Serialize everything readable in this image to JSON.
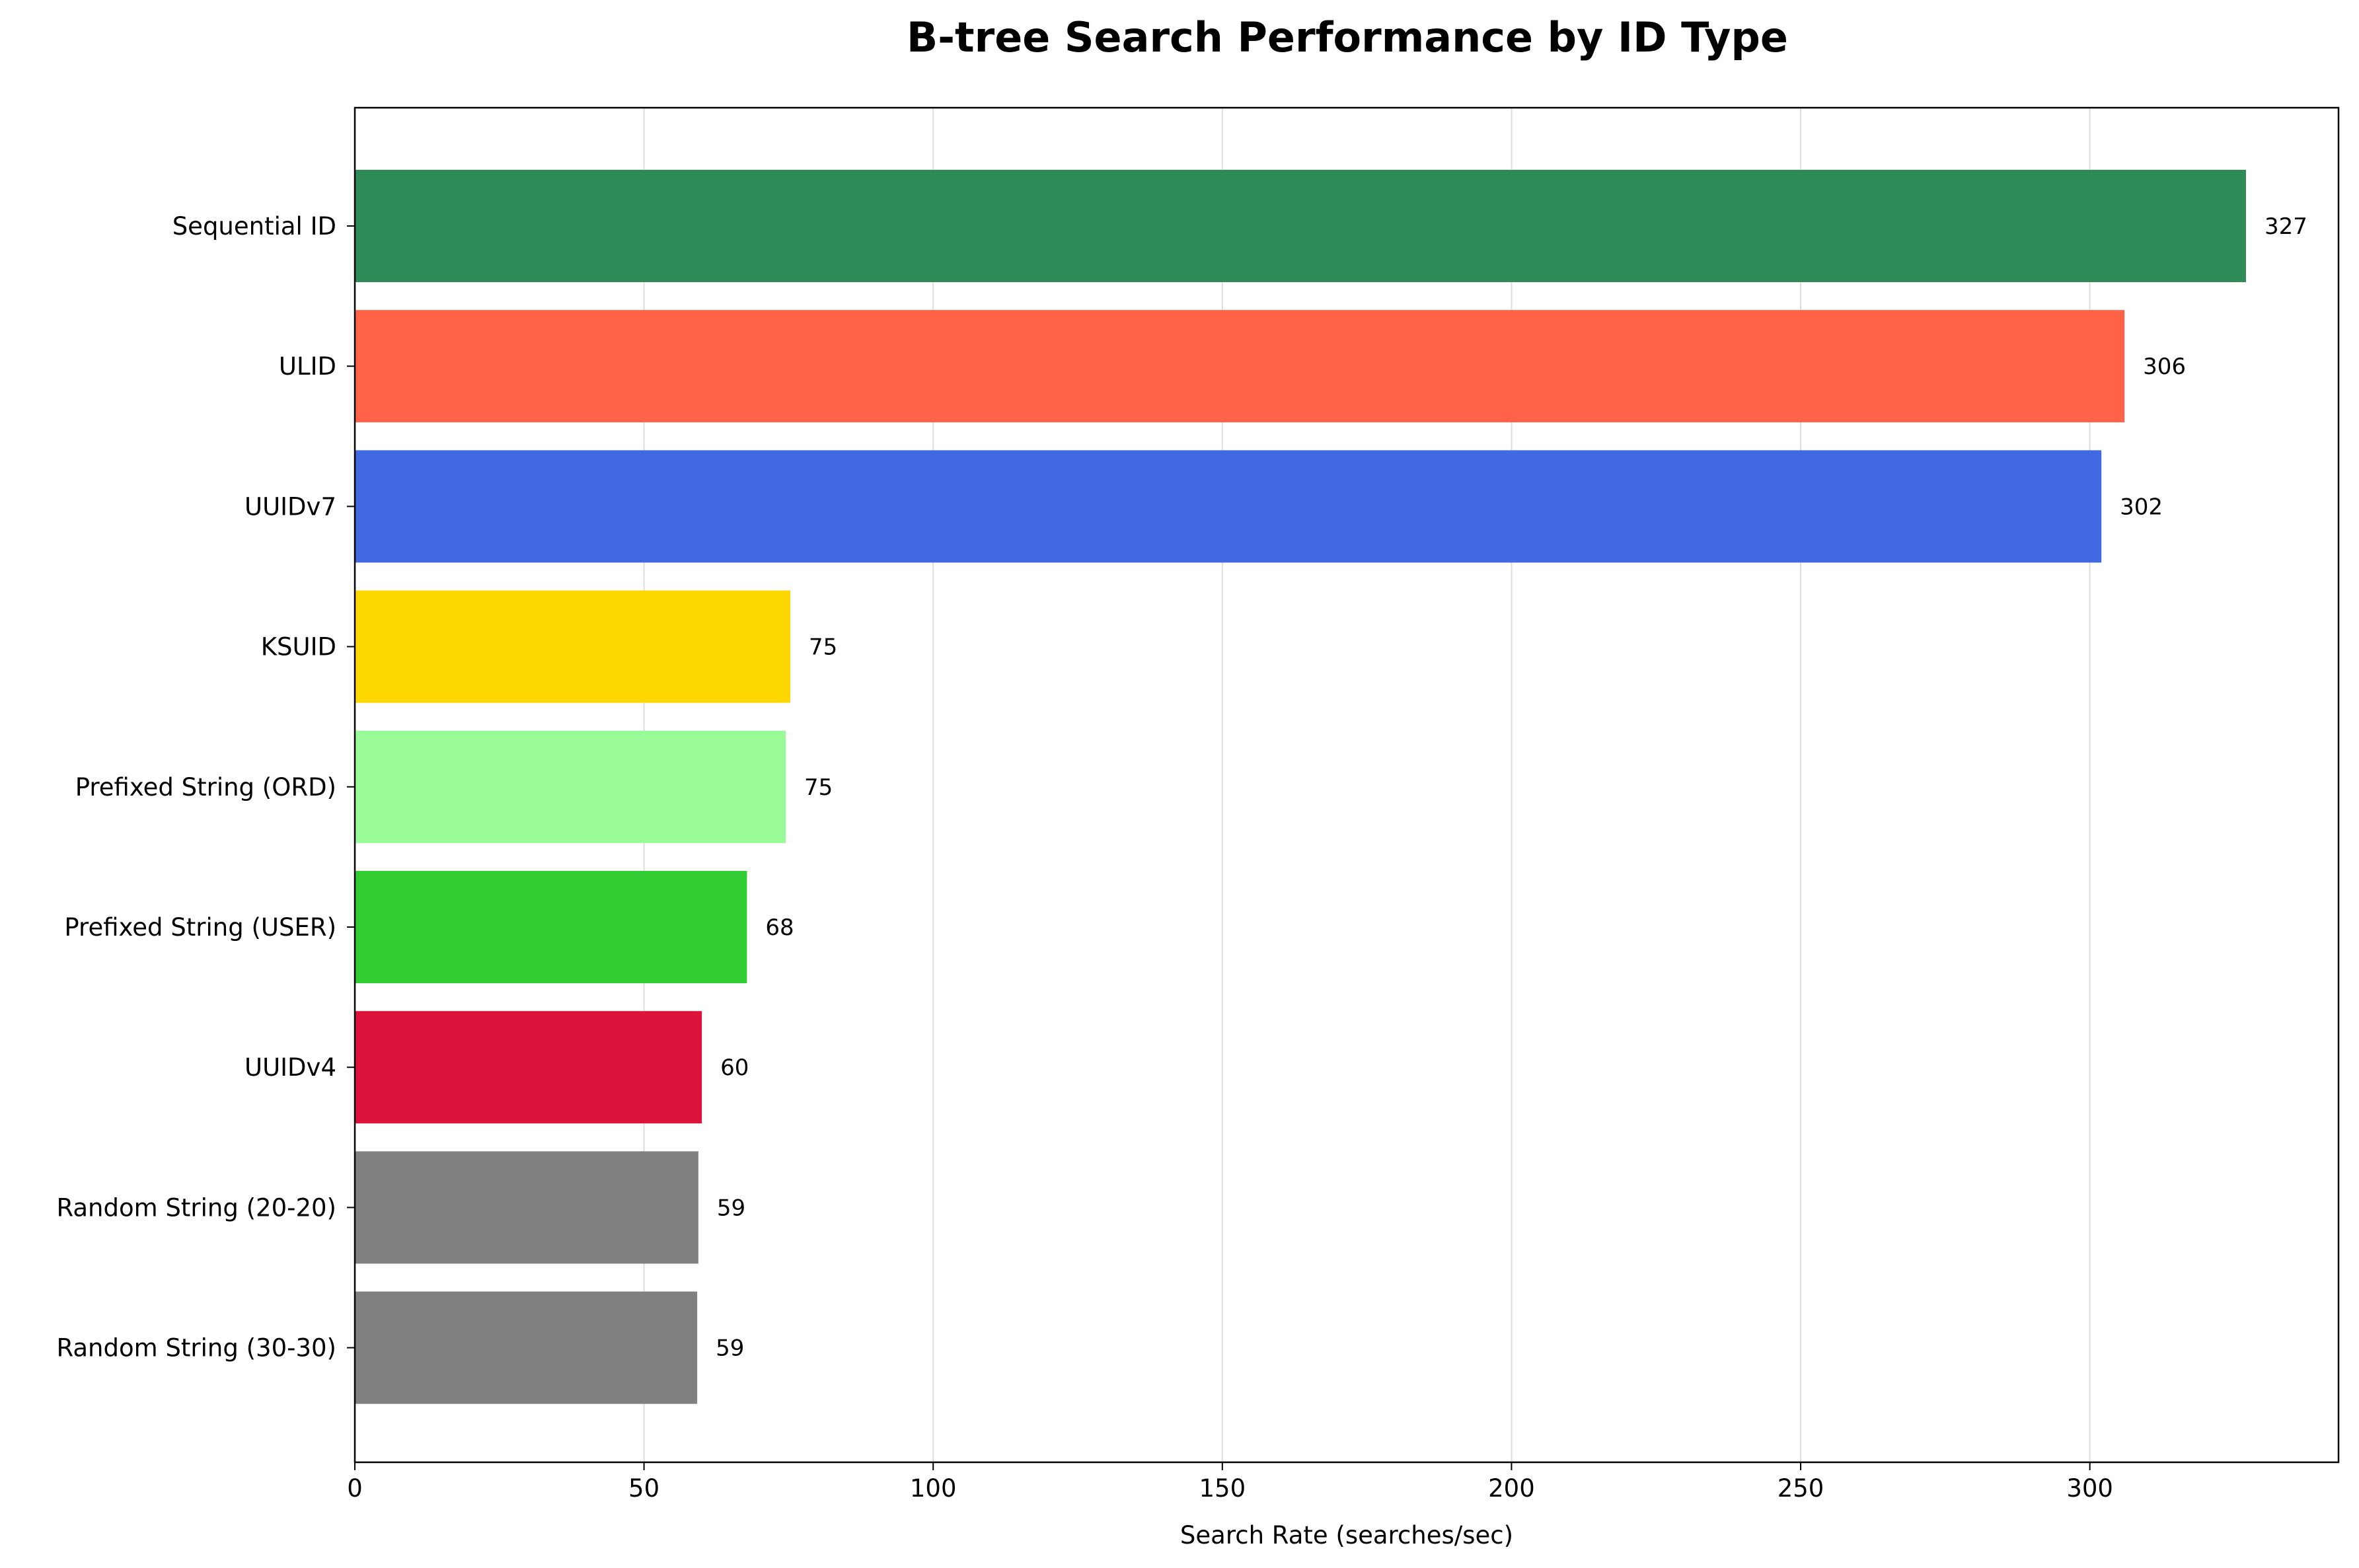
{
  "chart_data": {
    "type": "bar",
    "orientation": "horizontal",
    "title": "B-tree Search Performance by ID Type",
    "xlabel": "Search Rate (searches/sec)",
    "ylabel": "",
    "xlim": [
      0,
      343
    ],
    "xticks": [
      0,
      50,
      100,
      150,
      200,
      250,
      300
    ],
    "grid": "x-axis vertical gridlines",
    "legend": "none",
    "categories": [
      "Sequential ID",
      "ULID",
      "UUIDv7",
      "KSUID",
      "Prefixed String (ORD)",
      "Prefixed String (USER)",
      "UUIDv4",
      "Random String (20-20)",
      "Random String (30-30)"
    ],
    "values": [
      327,
      306,
      302,
      75.3,
      74.5,
      67.8,
      60,
      59.4,
      59.2
    ],
    "value_labels": [
      "327",
      "306",
      "302",
      "75",
      "75",
      "68",
      "60",
      "59",
      "59"
    ],
    "colors": [
      "#2e8b57",
      "#ff6347",
      "#4169e1",
      "#ffd700",
      "#98fb98",
      "#32cd32",
      "#dc143c",
      "#808080",
      "#808080"
    ]
  }
}
